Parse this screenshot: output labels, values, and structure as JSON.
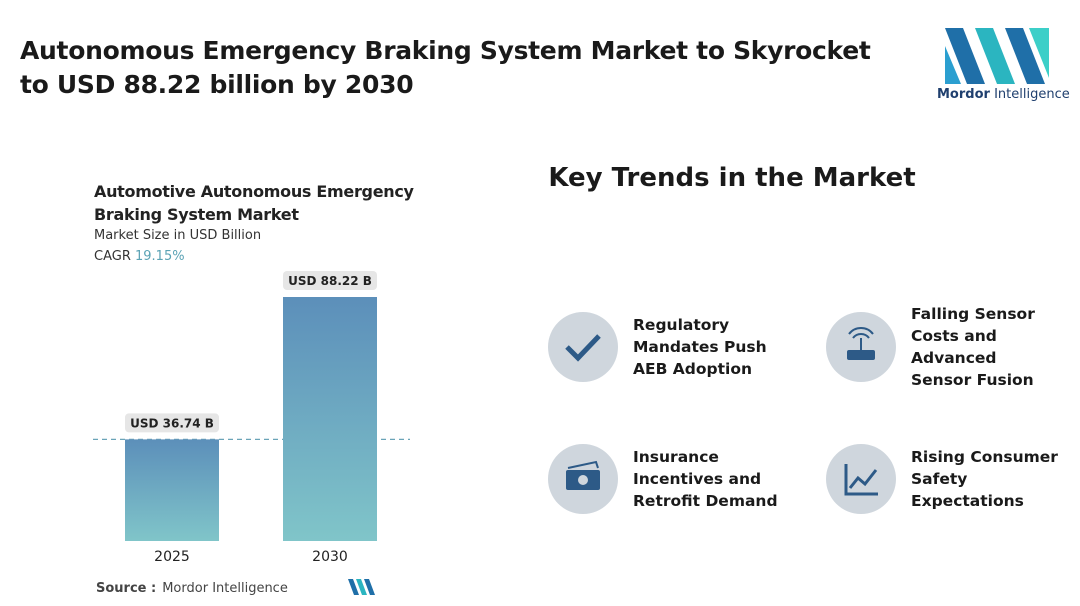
{
  "header": {
    "title": "Autonomous Emergency Braking System Market to Skyrocket to USD 88.22 billion by 2030",
    "logo_text": [
      "Mordor",
      "Intelligence"
    ]
  },
  "chart_data": {
    "type": "bar",
    "title": "Automotive Autonomous Emergency Braking System Market",
    "subtitle": "Market Size in USD Billion",
    "cagr_label": "CAGR",
    "cagr": "19.15%",
    "categories": [
      "2025",
      "2030"
    ],
    "values": [
      36.74,
      88.22
    ],
    "value_labels": [
      "USD 36.74 B",
      "USD 88.22 B"
    ],
    "source_label": "Source :",
    "source": "Mordor Intelligence"
  },
  "trends": {
    "title": "Key Trends in the Market",
    "items": [
      "Regulatory Mandates Push AEB Adoption",
      "Falling Sensor Costs and Advanced Sensor Fusion",
      "Insurance Incentives and Retrofit Demand",
      "Rising Consumer Safety Expectations"
    ]
  }
}
